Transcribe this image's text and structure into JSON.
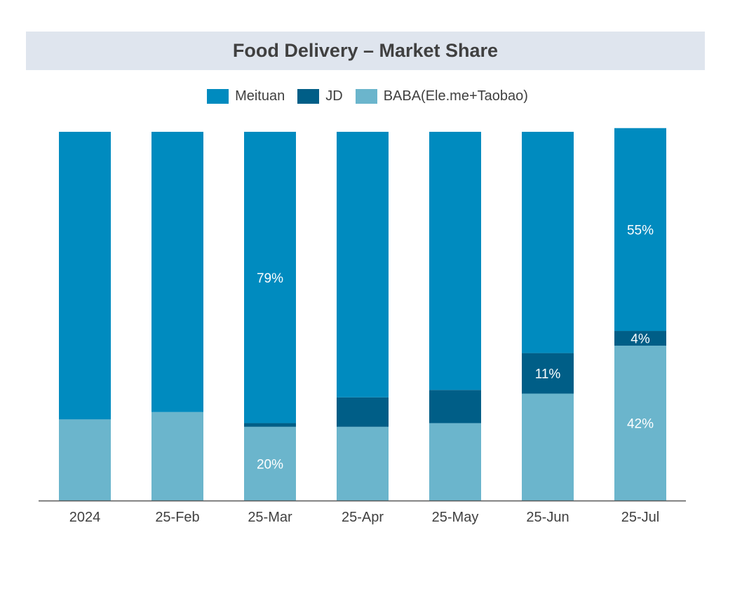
{
  "chart_data": {
    "type": "bar",
    "stacked": true,
    "title": "Food Delivery – Market Share",
    "xlabel": "",
    "ylabel": "",
    "ylim": [
      0,
      100
    ],
    "grid": false,
    "legend_position": "top",
    "categories": [
      "2024",
      "25-Feb",
      "25-Mar",
      "25-Apr",
      "25-May",
      "25-Jun",
      "25-Jul"
    ],
    "series": [
      {
        "name": "BABA(Ele.me+Taobao)",
        "color": "#6bb5cc",
        "values": [
          22,
          24,
          20,
          20,
          21,
          29,
          42
        ],
        "labels": [
          null,
          null,
          "20%",
          null,
          null,
          null,
          "42%"
        ]
      },
      {
        "name": "JD",
        "color": "#005e87",
        "values": [
          0,
          0,
          1,
          8,
          9,
          11,
          4
        ],
        "labels": [
          null,
          null,
          null,
          null,
          null,
          "11%",
          "4%"
        ]
      },
      {
        "name": "Meituan",
        "color": "#008bbf",
        "values": [
          78,
          76,
          79,
          72,
          70,
          60,
          55
        ],
        "labels": [
          null,
          null,
          "79%",
          null,
          null,
          null,
          "55%"
        ]
      }
    ],
    "legend_order": [
      "Meituan",
      "JD",
      "BABA(Ele.me+Taobao)"
    ]
  }
}
